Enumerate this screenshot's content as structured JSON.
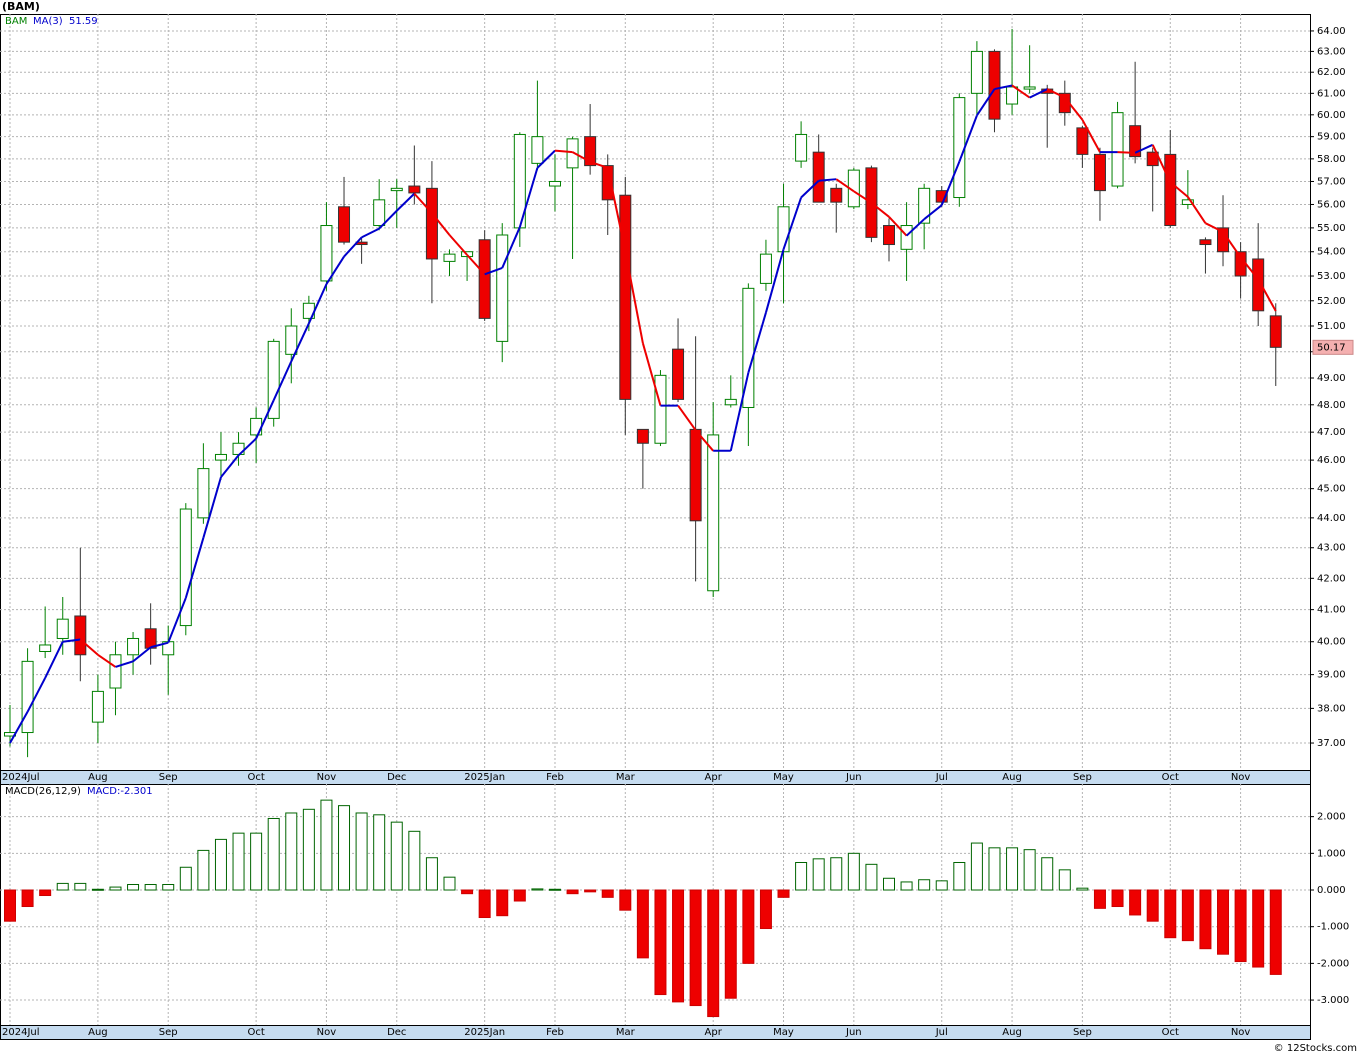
{
  "chart_data": [
    {
      "type": "candlestick",
      "title": "(BAM)",
      "name": "BAM",
      "color": "#008000",
      "down_color": "#ee0000",
      "categories": [
        "2024Jul",
        null,
        null,
        null,
        null,
        "Aug",
        null,
        null,
        null,
        "Sep",
        null,
        null,
        null,
        null,
        "Oct",
        null,
        null,
        null,
        "Nov",
        null,
        null,
        null,
        "Dec",
        null,
        null,
        null,
        null,
        "2025Jan",
        null,
        null,
        null,
        "Feb",
        null,
        null,
        null,
        "Mar",
        null,
        null,
        null,
        null,
        "Apr",
        null,
        null,
        null,
        "May",
        null,
        null,
        null,
        "Jun",
        null,
        null,
        null,
        null,
        "Jul",
        null,
        null,
        null,
        "Aug",
        null,
        null,
        null,
        "Sep",
        null,
        null,
        null,
        null,
        "Oct",
        null,
        null,
        null,
        "Nov",
        null,
        null
      ],
      "open": [
        37.2,
        37.3,
        39.7,
        40.1,
        40.8,
        37.6,
        38.6,
        39.6,
        40.4,
        39.6,
        40.5,
        44.0,
        46.0,
        46.2,
        46.9,
        47.5,
        49.9,
        51.3,
        52.8,
        55.9,
        54.4,
        55.1,
        56.6,
        56.8,
        56.7,
        53.6,
        53.8,
        54.5,
        50.4,
        55.0,
        57.8,
        56.8,
        57.6,
        59.0,
        57.7,
        56.4,
        47.1,
        46.6,
        50.1,
        47.1,
        41.6,
        48.0,
        47.9,
        52.7,
        54.0,
        57.9,
        58.3,
        56.7,
        55.9,
        57.6,
        55.1,
        54.1,
        55.2,
        56.6,
        56.3,
        61.0,
        63.0,
        60.5,
        61.2,
        61.2,
        61.0,
        59.4,
        58.2,
        56.8,
        59.5,
        58.3,
        58.2,
        56.0,
        54.5,
        55.0,
        54.0,
        53.7,
        51.4
      ],
      "high": [
        38.1,
        39.8,
        41.1,
        41.4,
        43.0,
        39.0,
        40.0,
        40.3,
        41.2,
        40.5,
        44.5,
        46.6,
        47.0,
        47.0,
        47.9,
        50.5,
        51.7,
        52.2,
        56.1,
        57.2,
        54.6,
        57.1,
        57.1,
        58.6,
        57.9,
        54.1,
        54.0,
        54.9,
        55.2,
        59.2,
        61.6,
        58.2,
        59.0,
        60.5,
        58.2,
        57.2,
        47.1,
        49.3,
        51.3,
        50.6,
        48.1,
        49.1,
        52.7,
        54.5,
        56.9,
        59.7,
        59.1,
        56.9,
        57.6,
        57.7,
        55.4,
        56.1,
        56.9,
        56.8,
        61.0,
        63.5,
        63.1,
        64.1,
        63.3,
        61.4,
        61.6,
        59.5,
        58.5,
        60.6,
        62.5,
        58.5,
        59.3,
        57.5,
        54.6,
        56.4,
        54.4,
        55.2,
        51.9
      ],
      "low": [
        36.9,
        36.6,
        39.5,
        39.6,
        38.8,
        37.0,
        37.8,
        39.0,
        39.3,
        38.4,
        40.2,
        43.8,
        45.3,
        45.8,
        45.9,
        47.2,
        48.8,
        50.8,
        52.4,
        54.3,
        53.5,
        54.9,
        55.0,
        56.0,
        51.9,
        53.0,
        52.8,
        51.2,
        49.6,
        54.2,
        57.5,
        55.7,
        53.7,
        57.3,
        54.7,
        46.9,
        45.0,
        46.5,
        48.1,
        41.9,
        41.4,
        47.9,
        46.5,
        52.4,
        51.9,
        57.6,
        56.1,
        54.8,
        55.8,
        54.4,
        53.6,
        52.8,
        54.1,
        55.9,
        55.9,
        60.0,
        59.2,
        60.0,
        61.0,
        58.5,
        59.5,
        57.6,
        55.3,
        56.7,
        57.8,
        55.7,
        55.0,
        55.8,
        53.1,
        53.4,
        52.1,
        51.0,
        48.7
      ],
      "close": [
        37.3,
        39.4,
        39.9,
        40.7,
        39.6,
        38.5,
        39.6,
        40.1,
        39.8,
        40.0,
        44.3,
        45.7,
        46.2,
        46.6,
        47.5,
        50.4,
        51.0,
        51.9,
        55.1,
        54.4,
        54.3,
        56.2,
        56.7,
        56.5,
        53.7,
        53.9,
        54.0,
        51.3,
        54.7,
        59.1,
        59.0,
        57.0,
        58.9,
        57.7,
        56.2,
        48.2,
        46.6,
        49.1,
        48.2,
        43.9,
        46.9,
        48.2,
        52.5,
        53.9,
        55.9,
        59.1,
        56.1,
        56.1,
        57.5,
        54.6,
        54.3,
        55.1,
        56.7,
        56.1,
        60.8,
        63.0,
        59.8,
        61.3,
        61.3,
        61.0,
        60.1,
        58.2,
        56.6,
        60.1,
        58.1,
        57.7,
        55.1,
        56.2,
        54.3,
        54.0,
        53.0,
        51.6,
        50.17
      ],
      "ma": {
        "name": "MA(3)",
        "color": "#0000cc",
        "down_color": "#ee0000",
        "values": [
          37.0,
          37.9,
          38.9,
          40.0,
          40.07,
          39.6,
          39.23,
          39.4,
          39.83,
          39.97,
          41.37,
          43.33,
          45.4,
          46.17,
          46.77,
          48.17,
          49.63,
          51.1,
          52.67,
          53.8,
          54.6,
          54.97,
          55.73,
          56.47,
          55.63,
          54.7,
          53.87,
          53.07,
          53.33,
          55.03,
          57.6,
          58.37,
          58.3,
          57.87,
          57.6,
          54.03,
          50.33,
          47.97,
          47.97,
          47.07,
          46.33,
          46.33,
          49.2,
          51.53,
          54.1,
          56.3,
          57.03,
          57.1,
          56.57,
          56.07,
          55.47,
          54.67,
          55.37,
          55.97,
          57.87,
          59.97,
          61.2,
          61.37,
          60.8,
          61.2,
          60.8,
          59.77,
          58.3,
          58.3,
          58.27,
          58.63,
          56.97,
          56.33,
          55.2,
          54.83,
          53.77,
          52.87,
          51.59
        ]
      },
      "log_scale": true,
      "grid": true,
      "ylim": [
        36.24,
        64.84
      ],
      "yticks": [
        {
          "value": 37,
          "label": "37.00"
        },
        {
          "value": 38,
          "label": "38.00"
        },
        {
          "value": 39,
          "label": "39.00"
        },
        {
          "value": 40,
          "label": "40.00"
        },
        {
          "value": 41,
          "label": "41.00"
        },
        {
          "value": 42,
          "label": "42.00"
        },
        {
          "value": 43,
          "label": "43.00"
        },
        {
          "value": 44,
          "label": "44.00"
        },
        {
          "value": 45,
          "label": "45.00"
        },
        {
          "value": 46,
          "label": "46.00"
        },
        {
          "value": 47,
          "label": "47.00"
        },
        {
          "value": 48,
          "label": "48.00"
        },
        {
          "value": 49,
          "label": "49.00"
        },
        {
          "value": 50,
          "label": "50.00"
        },
        {
          "value": 51,
          "label": "51.00"
        },
        {
          "value": 52,
          "label": "52.00"
        },
        {
          "value": 53,
          "label": "53.00"
        },
        {
          "value": 54,
          "label": "54.00"
        },
        {
          "value": 55,
          "label": "55.00"
        },
        {
          "value": 56,
          "label": "56.00"
        },
        {
          "value": 57,
          "label": "57.00"
        },
        {
          "value": 58,
          "label": "58.00"
        },
        {
          "value": 59,
          "label": "59.00"
        },
        {
          "value": 60,
          "label": "60.00"
        },
        {
          "value": 61,
          "label": "61.00"
        },
        {
          "value": 62,
          "label": "62.00"
        },
        {
          "value": 63,
          "label": "63.00"
        },
        {
          "value": 64,
          "label": "64.00"
        }
      ]
    },
    {
      "type": "bar",
      "name": "MACD(26,12,9)",
      "label": "MACD:-2.301",
      "color": "#006400",
      "down_color": "#ee0000",
      "values": [
        -0.85,
        -0.45,
        -0.15,
        0.18,
        0.18,
        0.02,
        0.08,
        0.15,
        0.15,
        0.15,
        0.62,
        1.08,
        1.38,
        1.55,
        1.55,
        1.95,
        2.1,
        2.2,
        2.45,
        2.3,
        2.1,
        2.05,
        1.85,
        1.6,
        0.88,
        0.35,
        -0.1,
        -0.75,
        -0.7,
        -0.3,
        0.03,
        0.02,
        -0.1,
        -0.05,
        -0.2,
        -0.55,
        -1.85,
        -2.85,
        -3.05,
        -3.15,
        -3.45,
        -2.95,
        -2.0,
        -1.05,
        -0.2,
        0.75,
        0.85,
        0.88,
        1.0,
        0.7,
        0.32,
        0.22,
        0.28,
        0.25,
        0.75,
        1.28,
        1.15,
        1.15,
        1.1,
        0.88,
        0.55,
        0.05,
        -0.5,
        -0.45,
        -0.68,
        -0.85,
        -1.3,
        -1.38,
        -1.6,
        -1.75,
        -1.95,
        -2.1,
        -2.301
      ],
      "grid": true,
      "ylim": [
        -3.68,
        2.89
      ],
      "yticks": [
        {
          "value": -3,
          "label": "-3.000"
        },
        {
          "value": -2,
          "label": "-2.000"
        },
        {
          "value": -1,
          "label": "-1.000"
        },
        {
          "value": 0,
          "label": "0.000"
        },
        {
          "value": 1,
          "label": "1.000"
        },
        {
          "value": 2,
          "label": "2.000"
        }
      ]
    }
  ],
  "credit": "© 12Stocks.com"
}
